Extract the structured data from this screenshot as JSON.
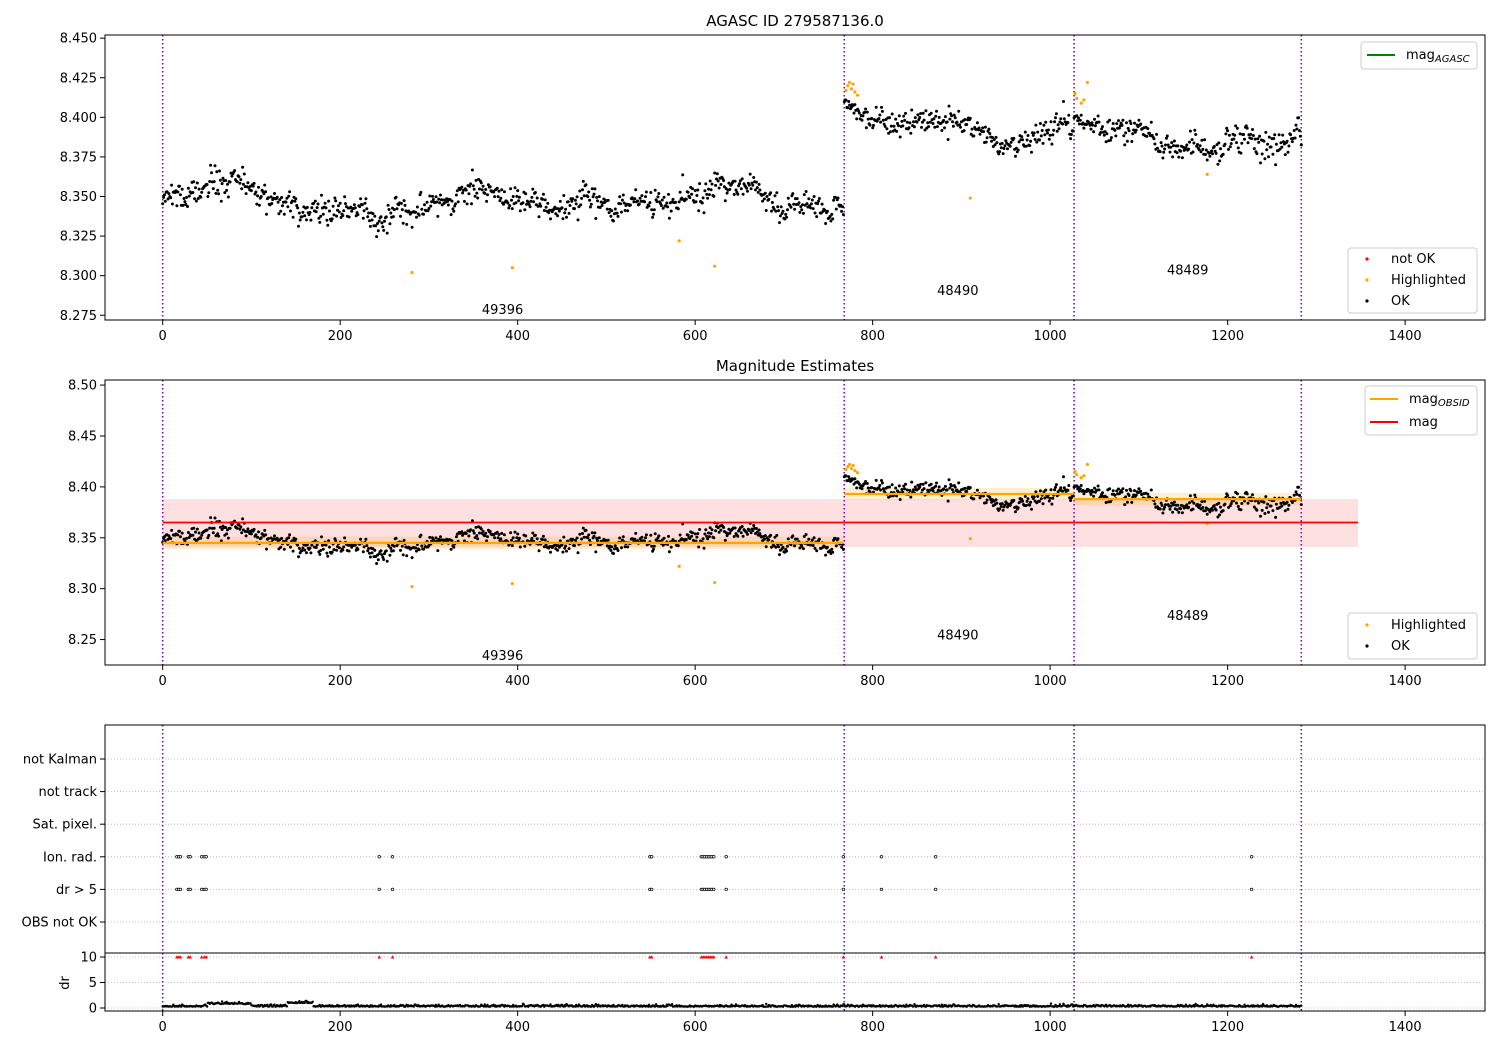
{
  "chart_data": [
    {
      "type": "scatter",
      "title": "AGASC ID 279587136.0",
      "xlim": [
        -65,
        1490
      ],
      "ylim": [
        8.272,
        8.452
      ],
      "xticks": [
        0,
        200,
        400,
        600,
        800,
        1000,
        1200,
        1400
      ],
      "yticks": [
        "8.275",
        "8.300",
        "8.325",
        "8.350",
        "8.375",
        "8.400",
        "8.425",
        "8.450"
      ],
      "obs_boundaries": [
        0,
        768,
        1027,
        1283
      ],
      "obs_labels": [
        {
          "text": "49396",
          "x": 383,
          "y": 8.279
        },
        {
          "text": "48490",
          "x": 896,
          "y": 8.291
        },
        {
          "text": "48489",
          "x": 1155,
          "y": 8.304
        }
      ],
      "segments": [
        {
          "x0": 0,
          "x1": 767,
          "base": 8.346,
          "amp": 0.006,
          "noise": 0.0065
        },
        {
          "x0": 768,
          "x1": 1026,
          "base": 8.392,
          "amp": 0.004,
          "noise": 0.006,
          "start": 8.41
        },
        {
          "x0": 1027,
          "x1": 1283,
          "base": 8.388,
          "amp": 0.003,
          "noise": 0.006,
          "start": 8.4
        }
      ],
      "highlighted": [
        [
          281,
          8.302
        ],
        [
          394,
          8.305
        ],
        [
          582,
          8.322
        ],
        [
          622,
          8.306
        ],
        [
          770,
          8.417
        ],
        [
          772,
          8.42
        ],
        [
          774,
          8.422
        ],
        [
          776,
          8.418
        ],
        [
          778,
          8.421
        ],
        [
          780,
          8.416
        ],
        [
          783,
          8.414
        ],
        [
          910,
          8.349
        ],
        [
          1028,
          8.415
        ],
        [
          1030,
          8.412
        ],
        [
          1035,
          8.409
        ],
        [
          1038,
          8.411
        ],
        [
          1042,
          8.422
        ],
        [
          1177,
          8.364
        ]
      ],
      "not_ok": [],
      "legend_top": {
        "entries": [
          "mag"
        ],
        "subscripts": [
          "AGASC"
        ]
      },
      "legend_bottom": {
        "entries": [
          "not OK",
          "Highlighted",
          "OK"
        ]
      }
    },
    {
      "type": "scatter",
      "title": "Magnitude Estimates",
      "xlim": [
        -65,
        1490
      ],
      "ylim": [
        8.225,
        8.505
      ],
      "xticks": [
        0,
        200,
        400,
        600,
        800,
        1000,
        1200,
        1400
      ],
      "yticks": [
        "8.25",
        "8.30",
        "8.35",
        "8.40",
        "8.45",
        "8.50"
      ],
      "obs_boundaries": [
        0,
        768,
        1027,
        1283
      ],
      "obs_labels": [
        {
          "text": "49396",
          "x": 383,
          "y": 8.235
        },
        {
          "text": "48490",
          "x": 896,
          "y": 8.255
        },
        {
          "text": "48489",
          "x": 1155,
          "y": 8.274
        }
      ],
      "mag": {
        "value": 8.365,
        "band": [
          8.341,
          8.388
        ],
        "x_range": [
          0,
          1347
        ]
      },
      "mag_obsid": [
        {
          "x0": 0,
          "x1": 767,
          "value": 8.345,
          "band": [
            8.339,
            8.351
          ]
        },
        {
          "x0": 768,
          "x1": 1026,
          "value": 8.393,
          "band": [
            8.387,
            8.399
          ]
        },
        {
          "x0": 1027,
          "x1": 1283,
          "value": 8.388,
          "band": [
            8.382,
            8.394
          ]
        }
      ],
      "highlighted": [
        [
          281,
          8.302
        ],
        [
          394,
          8.305
        ],
        [
          582,
          8.322
        ],
        [
          622,
          8.306
        ],
        [
          770,
          8.417
        ],
        [
          772,
          8.42
        ],
        [
          774,
          8.422
        ],
        [
          776,
          8.418
        ],
        [
          778,
          8.421
        ],
        [
          780,
          8.416
        ],
        [
          783,
          8.414
        ],
        [
          910,
          8.349
        ],
        [
          1028,
          8.415
        ],
        [
          1030,
          8.412
        ],
        [
          1035,
          8.409
        ],
        [
          1038,
          8.411
        ],
        [
          1042,
          8.422
        ],
        [
          1177,
          8.364
        ]
      ],
      "legend_top": {
        "entries": [
          "mag",
          "mag"
        ],
        "subscripts": [
          "OBSID",
          ""
        ]
      },
      "legend_bottom": {
        "entries": [
          "Highlighted",
          "OK"
        ]
      }
    },
    {
      "type": "scatter",
      "flags": [
        "not Kalman",
        "not track",
        "Sat. pixel.",
        "Ion. rad.",
        "dr > 5",
        "OBS not OK"
      ],
      "xlim": [
        -65,
        1490
      ],
      "xticks": [
        0,
        200,
        400,
        600,
        800,
        1000,
        1200,
        1400
      ],
      "obs_boundaries": [
        0,
        768,
        1027,
        1283
      ],
      "flag_x": [
        16,
        18,
        20,
        29,
        31,
        44,
        47,
        49,
        244,
        259,
        549,
        551,
        607,
        609,
        611,
        613,
        615,
        617,
        619,
        621,
        635,
        767,
        810,
        871,
        1227
      ],
      "flag_rows": [
        "Ion. rad.",
        "dr > 5"
      ],
      "dr": {
        "ylabel": "dr",
        "yticks": [
          "0",
          "5",
          "10"
        ],
        "ylim": [
          -0.5,
          10.5
        ],
        "clip_value": 10
      }
    }
  ]
}
